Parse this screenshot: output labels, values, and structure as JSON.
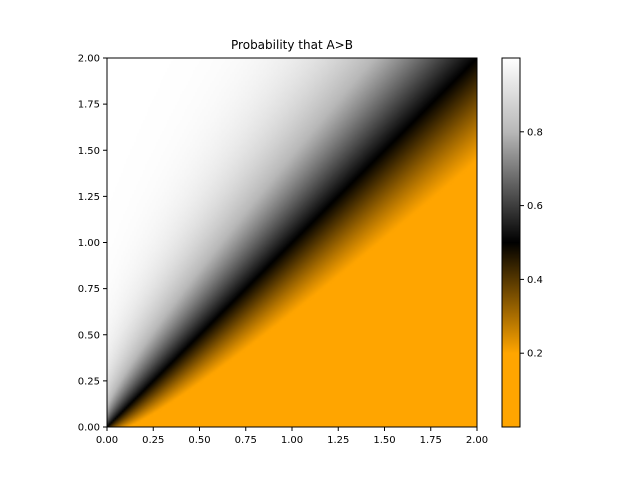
{
  "chart_data": {
    "type": "heatmap",
    "title": "Probability that A>B",
    "xlabel": "",
    "ylabel": "",
    "xlim": [
      0.0,
      2.0
    ],
    "ylim": [
      0.0,
      2.0
    ],
    "x_ticks": [
      "0.00",
      "0.25",
      "0.50",
      "0.75",
      "1.00",
      "1.25",
      "1.50",
      "1.75",
      "2.00"
    ],
    "y_ticks": [
      "0.00",
      "0.25",
      "0.50",
      "0.75",
      "1.00",
      "1.25",
      "1.50",
      "1.75",
      "2.00"
    ],
    "colorbar": {
      "range": [
        0.0,
        1.0
      ],
      "ticks": [
        "0.2",
        "0.4",
        "0.6",
        "0.8"
      ],
      "stops": [
        {
          "value": 0.0,
          "color": "#ffa500"
        },
        {
          "value": 0.2,
          "color": "#ffa500"
        },
        {
          "value": 0.5,
          "color": "#000000"
        },
        {
          "value": 0.8,
          "color": "#b8b8b8"
        },
        {
          "value": 1.0,
          "color": "#ffffff"
        }
      ]
    },
    "surface": {
      "description_key": "probability field",
      "diagonal_value": 0.5,
      "above_diagonal_value": 1.0,
      "below_diagonal_value": 0.0
    },
    "grid": false
  }
}
